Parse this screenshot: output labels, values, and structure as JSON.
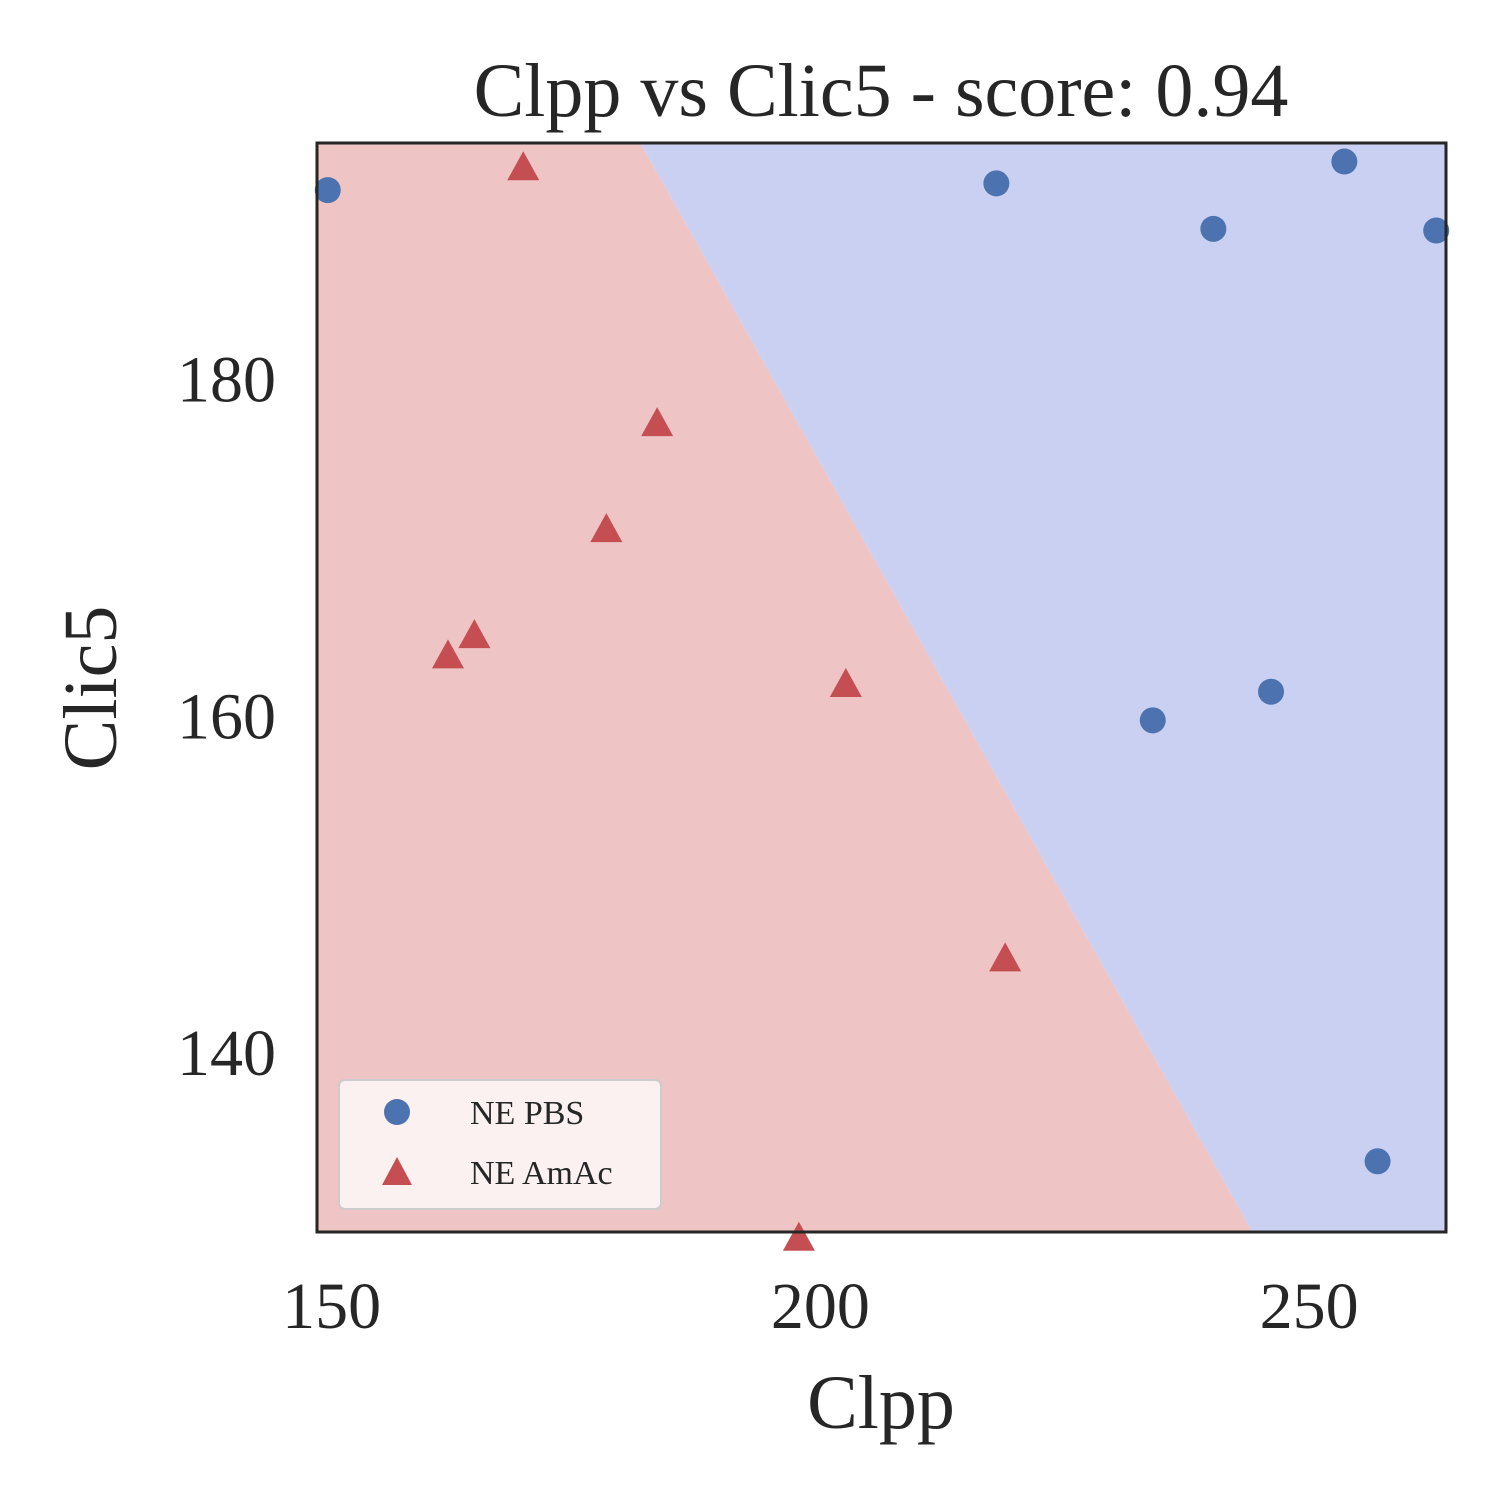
{
  "chart_data": {
    "type": "scatter",
    "title": "Clpp vs Clic5 - score: 0.94",
    "xlabel": "Clpp",
    "ylabel": "Clic5",
    "xlim": [
      148.5,
      264
    ],
    "ylim": [
      129.3,
      194
    ],
    "xticks": [
      150,
      200,
      250
    ],
    "yticks": [
      140,
      160,
      180
    ],
    "grid": false,
    "legend_position": "lower-left",
    "decision_regions": {
      "boundary": [
        [
          181.6,
          194
        ],
        [
          244.2,
          129.3
        ]
      ],
      "left_class": "NE AmAc",
      "right_class": "NE PBS",
      "left_color": "#eec4c4",
      "right_color": "#c9d0f1"
    },
    "series": [
      {
        "name": "NE PBS",
        "marker": "circle",
        "color": "#4c72b0",
        "points": [
          [
            149.6,
            191.2
          ],
          [
            218.0,
            191.6
          ],
          [
            240.2,
            188.9
          ],
          [
            253.6,
            192.9
          ],
          [
            263.0,
            188.8
          ],
          [
            234.0,
            159.7
          ],
          [
            246.1,
            161.4
          ],
          [
            257.0,
            133.5
          ]
        ]
      },
      {
        "name": "NE AmAc",
        "marker": "triangle",
        "color": "#c44e52",
        "points": [
          [
            169.6,
            192.5
          ],
          [
            183.3,
            177.3
          ],
          [
            178.1,
            171.0
          ],
          [
            164.6,
            164.7
          ],
          [
            161.9,
            163.5
          ],
          [
            202.6,
            161.8
          ],
          [
            218.9,
            145.5
          ],
          [
            197.8,
            128.9
          ]
        ]
      }
    ]
  }
}
